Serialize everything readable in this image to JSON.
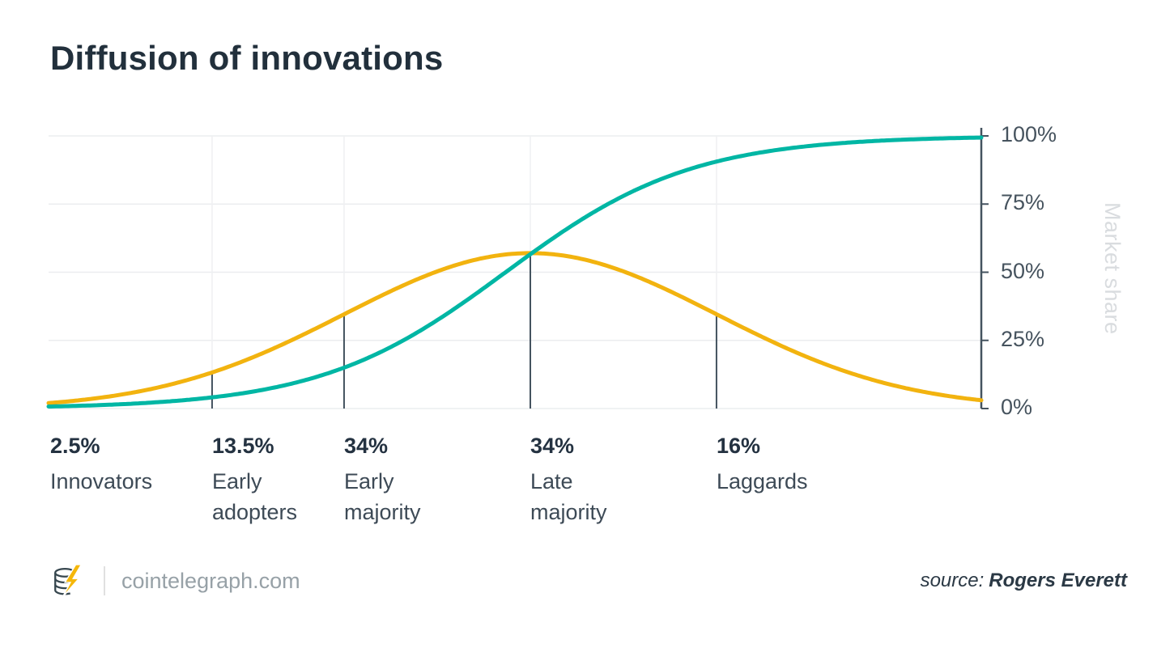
{
  "title": "Diffusion of innovations",
  "chart_data": {
    "type": "line",
    "title": "Diffusion of innovations",
    "ylabel": "Market share",
    "grid": true,
    "legend": "none",
    "ylim": [
      0,
      100
    ],
    "y_ticks": [
      {
        "value": 0,
        "label": "0%"
      },
      {
        "value": 25,
        "label": "25%"
      },
      {
        "value": 50,
        "label": "50%"
      },
      {
        "value": 75,
        "label": "75%"
      },
      {
        "value": 100,
        "label": "100%"
      }
    ],
    "series": [
      {
        "name": "adoption-bell",
        "description": "New adopters per period (bell curve)",
        "color": "#F2B30F",
        "shape": "gaussian",
        "peak_percent": 57,
        "mean_frac": 0.5165,
        "sigma_frac": 0.1997
      },
      {
        "name": "market-share",
        "description": "Cumulative market share (S-curve)",
        "color": "#00B6A4",
        "shape": "logistic",
        "max_percent": 100,
        "mean_frac": 0.49,
        "sigma_frac": 0.1997,
        "steepness": 2.0
      }
    ],
    "segments": [
      {
        "percent": "2.5%",
        "label": "Innovators",
        "boundary_frac": 0.0
      },
      {
        "percent": "13.5%",
        "label": "Early adopters",
        "boundary_frac": 0.1753
      },
      {
        "percent": "34%",
        "label": "Early majority",
        "boundary_frac": 0.3168
      },
      {
        "percent": "34%",
        "label": "Late majority",
        "boundary_frac": 0.5165
      },
      {
        "percent": "16%",
        "label": "Laggards",
        "boundary_frac": 0.7161
      }
    ]
  },
  "footer": {
    "site": "cointelegraph.com",
    "source_label": "source:",
    "source_name": "Rogers Everett"
  },
  "colors": {
    "bell": "#F2B30F",
    "scurve": "#00B6A4",
    "axis": "#44535F",
    "grid": "#EBEDEF",
    "title_text": "#22303C",
    "tick_text": "#46535E",
    "axis_label_text": "#D9DCDF"
  }
}
